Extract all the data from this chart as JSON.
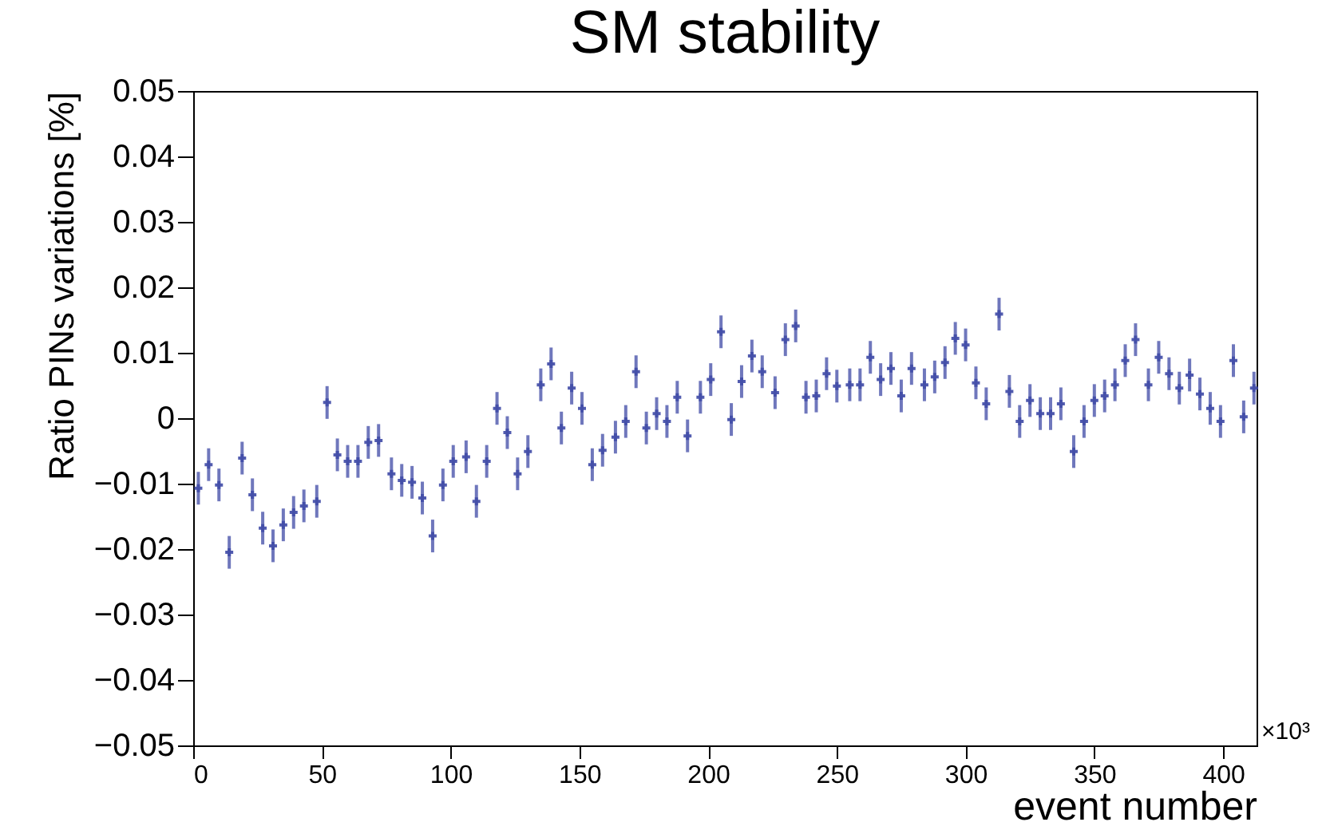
{
  "chart_data": {
    "type": "scatter",
    "title": "SM stability",
    "xlabel": "event number",
    "ylabel": "Ratio PINs variations [%]",
    "annotations": [
      "×10³"
    ],
    "x": [
      2,
      6,
      10,
      14,
      19,
      23,
      27,
      31,
      35,
      39,
      43,
      48,
      52,
      56,
      60,
      64,
      68,
      72,
      77,
      81,
      85,
      89,
      93,
      97,
      101,
      106,
      110,
      114,
      118,
      122,
      126,
      130,
      135,
      139,
      143,
      147,
      151,
      155,
      159,
      164,
      168,
      172,
      176,
      180,
      184,
      188,
      192,
      197,
      201,
      205,
      209,
      213,
      217,
      221,
      226,
      230,
      234,
      238,
      242,
      246,
      250,
      255,
      259,
      263,
      267,
      271,
      275,
      279,
      284,
      288,
      292,
      296,
      300,
      304,
      308,
      313,
      317,
      321,
      325,
      329,
      333,
      337,
      342,
      346,
      350,
      354,
      358,
      362,
      366,
      371,
      375,
      379,
      383,
      387,
      391,
      395,
      399,
      404,
      408,
      412
    ],
    "series": [
      {
        "color": "#3f4aa6",
        "values": [
          -0.0107,
          -0.0071,
          -0.0102,
          -0.0205,
          -0.0061,
          -0.0117,
          -0.0168,
          -0.0195,
          -0.0163,
          -0.0144,
          -0.0134,
          -0.0127,
          0.0024,
          -0.0056,
          -0.0066,
          -0.0066,
          -0.0037,
          -0.0034,
          -0.0085,
          -0.0095,
          -0.0098,
          -0.0122,
          -0.018,
          -0.0102,
          -0.0066,
          -0.0059,
          -0.0127,
          -0.0066,
          0.0015,
          -0.0022,
          -0.0085,
          -0.0051,
          0.0051,
          0.0083,
          -0.0015,
          0.0046,
          0.0015,
          -0.0071,
          -0.0049,
          -0.0029,
          -0.0005,
          0.0071,
          -0.0015,
          0.0007,
          -0.0005,
          0.0032,
          -0.0027,
          0.0032,
          0.0059,
          0.0132,
          -0.0002,
          0.0056,
          0.0095,
          0.0071,
          0.0039,
          0.012,
          0.0141,
          0.0032,
          0.0034,
          0.0068,
          0.0049,
          0.0051,
          0.0051,
          0.0093,
          0.0059,
          0.0076,
          0.0034,
          0.0076,
          0.0051,
          0.0063,
          0.0085,
          0.0122,
          0.0112,
          0.0054,
          0.0022,
          0.0159,
          0.0041,
          -0.0005,
          0.0027,
          0.0007,
          0.0007,
          0.0022,
          -0.0051,
          -0.0005,
          0.0027,
          0.0034,
          0.0051,
          0.0088,
          0.012,
          0.0051,
          0.0093,
          0.0068,
          0.0046,
          0.0066,
          0.0037,
          0.0015,
          -0.0005,
          0.0088,
          0.0002,
          0.0046
        ],
        "errors": [
          0.0025,
          0.0025,
          0.0025,
          0.0025,
          0.0025,
          0.0025,
          0.0025,
          0.0025,
          0.0025,
          0.0025,
          0.0025,
          0.0025,
          0.0025,
          0.0025,
          0.0025,
          0.0025,
          0.0025,
          0.0025,
          0.0025,
          0.0025,
          0.0025,
          0.0025,
          0.0025,
          0.0025,
          0.0025,
          0.0025,
          0.0025,
          0.0025,
          0.0025,
          0.0025,
          0.0025,
          0.0025,
          0.0025,
          0.0025,
          0.0025,
          0.0025,
          0.0025,
          0.0025,
          0.0025,
          0.0025,
          0.0025,
          0.0025,
          0.0025,
          0.0025,
          0.0025,
          0.0025,
          0.0025,
          0.0025,
          0.0025,
          0.0025,
          0.0025,
          0.0025,
          0.0025,
          0.0025,
          0.0025,
          0.0025,
          0.0025,
          0.0025,
          0.0025,
          0.0025,
          0.0025,
          0.0025,
          0.0025,
          0.0025,
          0.0025,
          0.0025,
          0.0025,
          0.0025,
          0.0025,
          0.0025,
          0.0025,
          0.0025,
          0.0025,
          0.0025,
          0.0025,
          0.0025,
          0.0025,
          0.0025,
          0.0025,
          0.0025,
          0.0025,
          0.0025,
          0.0025,
          0.0025,
          0.0025,
          0.0025,
          0.0025,
          0.0025,
          0.0025,
          0.0025,
          0.0025,
          0.0025,
          0.0025,
          0.0025,
          0.0025,
          0.0025,
          0.0025,
          0.0025,
          0.0025,
          0.0025
        ]
      }
    ],
    "marker": "cross",
    "grid": false,
    "xlim": [
      0,
      413
    ],
    "xticks": [
      0,
      50,
      100,
      150,
      200,
      250,
      300,
      350,
      400
    ],
    "ylim": [
      -0.05,
      0.05
    ],
    "yticks": [
      -0.05,
      -0.04,
      -0.03,
      -0.02,
      -0.01,
      0,
      0.01,
      0.02,
      0.03,
      0.04,
      0.05
    ]
  }
}
